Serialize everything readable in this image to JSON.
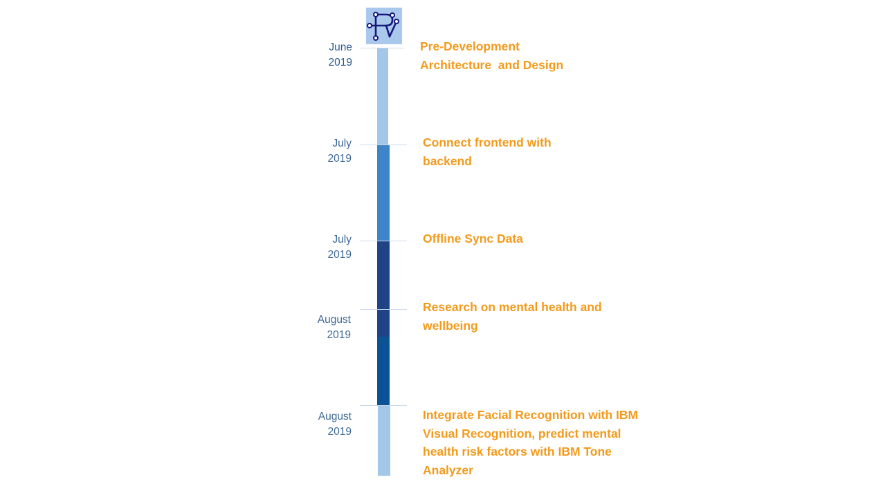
{
  "logo": {
    "icon": "circuit-r-logo-icon",
    "background": "#a9c8ec",
    "stroke": "#17167a"
  },
  "colors": {
    "event_text": "#f39a1b",
    "date_text": "#3f6a96",
    "date_text_first": "#2a5a8f",
    "tick": "#c9d9ea"
  },
  "timeline": {
    "milestones": [
      {
        "month": "June",
        "year": "2019",
        "event": [
          "Pre-Development",
          "Architecture  and Design"
        ]
      },
      {
        "month": "July",
        "year": "2019",
        "event": [
          "Connect frontend with",
          "backend"
        ]
      },
      {
        "month": "July",
        "year": "2019",
        "event": [
          "Offline Sync Data"
        ]
      },
      {
        "month": "August",
        "year": "2019",
        "event": [
          "Research on mental health and",
          "wellbeing"
        ]
      },
      {
        "month": "August",
        "year": "2019",
        "event": [
          "Integrate Facial Recognition with IBM",
          "Visual Recognition, predict mental",
          "health risk factors with IBM Tone",
          "Analyzer"
        ]
      }
    ],
    "segment_colors": [
      "#a4c7e9",
      "#3d85c6",
      "#1f4386",
      "#0b5394",
      "#a4c7e9"
    ]
  }
}
